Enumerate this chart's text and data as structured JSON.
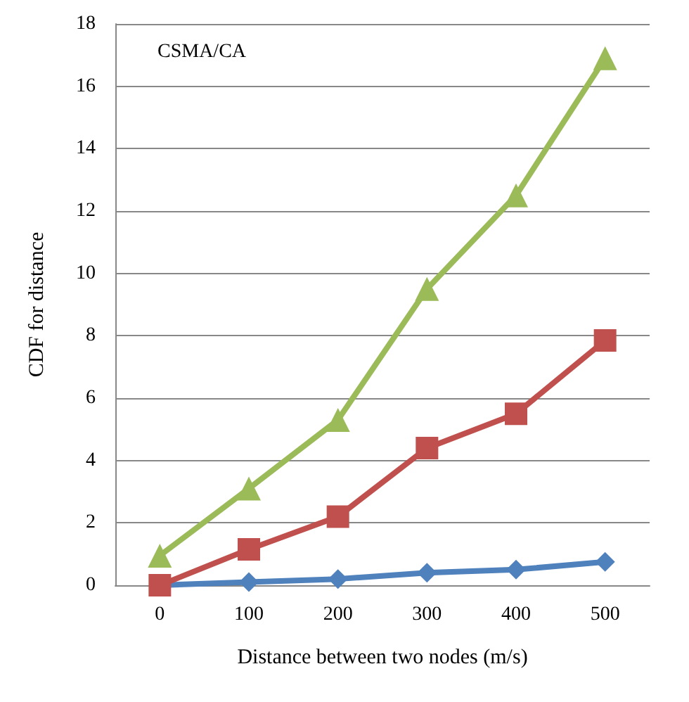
{
  "chart_data": {
    "type": "line",
    "xlabel": "Distance between two nodes (m/s)",
    "ylabel": "CDF for distance",
    "annotations": [
      "CSMA/CA"
    ],
    "categories": [
      "0",
      "100",
      "200",
      "300",
      "400",
      "500"
    ],
    "series": [
      {
        "color": "#4f81bd",
        "marker": "diamond",
        "values": [
          0,
          0.1,
          0.2,
          0.4,
          0.5,
          0.75
        ]
      },
      {
        "color": "#c0504d",
        "marker": "square",
        "values": [
          0,
          1.15,
          2.2,
          4.4,
          5.5,
          7.85
        ]
      },
      {
        "color": "#9bbb59",
        "marker": "triangle",
        "values": [
          0.95,
          3.1,
          5.3,
          9.5,
          12.5,
          16.9
        ]
      }
    ],
    "ylim": [
      0,
      18
    ],
    "yticks": [
      0,
      2,
      4,
      6,
      8,
      10,
      12,
      14,
      16,
      18
    ],
    "grid": "y",
    "line_style": "solid"
  }
}
